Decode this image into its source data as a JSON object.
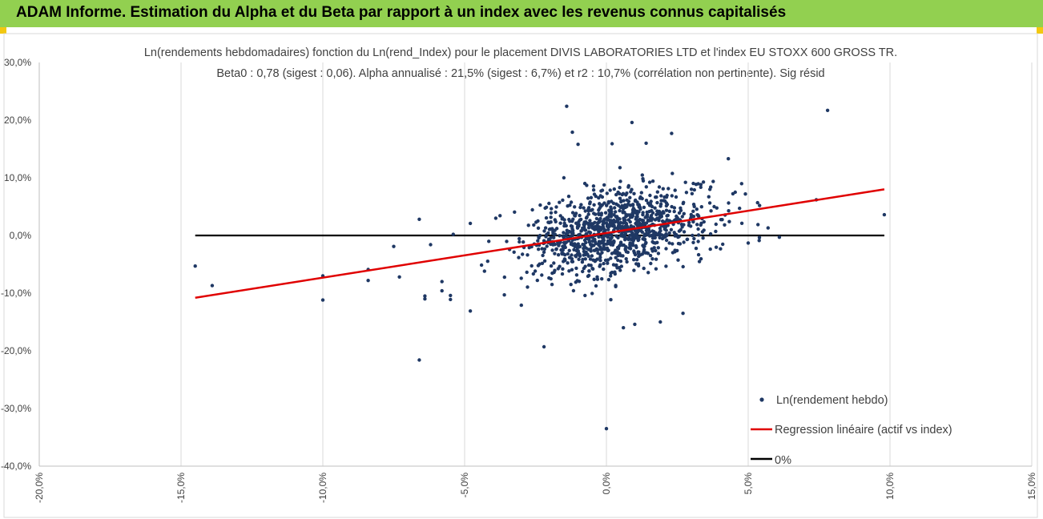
{
  "header": {
    "banner_title": "ADAM Informe. Estimation du Alpha et du Beta par rapport à un index avec les revenus connus capitalisés"
  },
  "colors": {
    "banner_bg": "#92d050",
    "scatter": "#1f3864",
    "regression": "#e00000",
    "zero_line": "#000000",
    "grid": "#d9d9d9"
  },
  "chart_data": {
    "type": "scatter",
    "title_line1": "Ln(rendements hebdomadaires) fonction du Ln(rend_Index) pour le placement DIVIS LABORATORIES LTD et l'index EU STOXX 600 GROSS TR.",
    "title_line2": "Beta0 : 0,78 (sigest : 0,06). Alpha annualisé : 21,5% (sigest : 6,7%) et r2 : 10,7% (corrélation non pertinente). Sig résid",
    "xlim": [
      -20,
      15
    ],
    "ylim": [
      -40,
      30
    ],
    "x_ticks": [
      -20,
      -15,
      -10,
      -5,
      0,
      5,
      10,
      15
    ],
    "y_ticks": [
      -40,
      -30,
      -20,
      -10,
      0,
      10,
      20,
      30
    ],
    "x_tick_labels": [
      "-20,0%",
      "-15,0%",
      "-10,0%",
      "-5,0%",
      "0,0%",
      "5,0%",
      "10,0%",
      "15,0%"
    ],
    "y_tick_labels": [
      "-40,0%",
      "-30,0%",
      "-20,0%",
      "-10,0%",
      "0,0%",
      "10,0%",
      "20,0%",
      "30,0%"
    ],
    "grid": "vertical",
    "legend_position": "bottom-right",
    "legend": [
      {
        "name": "Ln(rendement hebdo)",
        "marker": "dot"
      },
      {
        "name": "Regression linéaire (actif vs index)",
        "marker": "red-line"
      },
      {
        "name": "0%",
        "marker": "black-line"
      }
    ],
    "regression": {
      "x": [
        -14.5,
        9.8
      ],
      "y": [
        -10.8,
        8.0
      ]
    },
    "zero_line": {
      "x": [
        -14.5,
        9.8
      ],
      "y": [
        0,
        0
      ]
    },
    "outliers": [
      [
        -14.5,
        -5.3
      ],
      [
        -13.9,
        -8.7
      ],
      [
        -10.0,
        -7.0
      ],
      [
        -10.0,
        -11.2
      ],
      [
        -8.4,
        -7.8
      ],
      [
        -8.4,
        -5.9
      ],
      [
        -7.3,
        -7.2
      ],
      [
        -7.5,
        -1.9
      ],
      [
        -6.6,
        2.8
      ],
      [
        -6.6,
        -21.6
      ],
      [
        -6.4,
        -10.5
      ],
      [
        -6.4,
        -11.0
      ],
      [
        -6.2,
        -1.6
      ],
      [
        -5.8,
        -8.0
      ],
      [
        -5.8,
        -9.6
      ],
      [
        -5.5,
        -10.4
      ],
      [
        -5.5,
        -11.1
      ],
      [
        -5.4,
        0.2
      ],
      [
        -4.8,
        -13.1
      ],
      [
        -4.8,
        2.1
      ],
      [
        -4.3,
        -6.2
      ],
      [
        -3.6,
        -10.3
      ],
      [
        -3.0,
        -12.1
      ],
      [
        -2.2,
        -19.3
      ],
      [
        -1.4,
        22.4
      ],
      [
        -1.2,
        17.9
      ],
      [
        -1.0,
        15.8
      ],
      [
        0.0,
        -33.5
      ],
      [
        0.2,
        15.9
      ],
      [
        0.6,
        -16.0
      ],
      [
        0.9,
        19.6
      ],
      [
        1.0,
        -15.4
      ],
      [
        1.4,
        16.0
      ],
      [
        1.9,
        -15.0
      ],
      [
        2.3,
        17.7
      ],
      [
        2.7,
        -13.5
      ],
      [
        4.3,
        13.3
      ],
      [
        5.0,
        -1.3
      ],
      [
        5.4,
        5.2
      ],
      [
        5.7,
        1.3
      ],
      [
        6.1,
        -0.3
      ],
      [
        7.4,
        6.2
      ],
      [
        7.8,
        21.7
      ],
      [
        9.8,
        3.6
      ],
      [
        4.9,
        7.2
      ],
      [
        3.8,
        5.0
      ],
      [
        -3.9,
        3.0
      ],
      [
        -1.5,
        10.0
      ]
    ],
    "cluster": {
      "count": 1100,
      "seed": 7,
      "beta": 0.78,
      "intercept": 0.4,
      "x_mean": 0.4,
      "x_sd": 1.6,
      "residual_sd": 3.6
    }
  }
}
